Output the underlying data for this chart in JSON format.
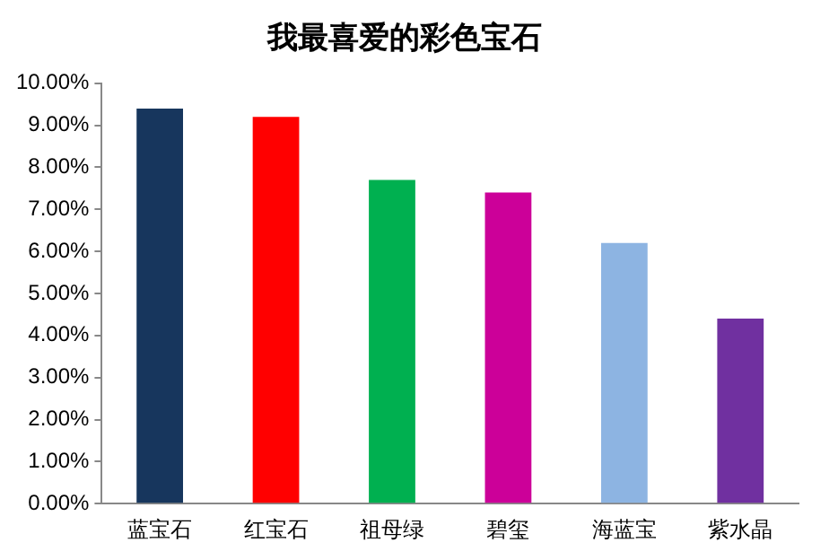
{
  "chart_data": {
    "type": "bar",
    "title": "我最喜爱的彩色宝石",
    "categories": [
      "蓝宝石",
      "红宝石",
      "祖母绿",
      "碧玺",
      "海蓝宝",
      "紫水晶"
    ],
    "values": [
      9.4,
      9.2,
      7.7,
      7.4,
      6.2,
      4.4
    ],
    "colors": [
      "#17365d",
      "#ff0000",
      "#00b050",
      "#cc0099",
      "#8db4e2",
      "#7030a0"
    ],
    "ylim": [
      0,
      10
    ],
    "yticks": [
      {
        "value": 0,
        "label": "0.00%"
      },
      {
        "value": 1,
        "label": "1.00%"
      },
      {
        "value": 2,
        "label": "2.00%"
      },
      {
        "value": 3,
        "label": "3.00%"
      },
      {
        "value": 4,
        "label": "4.00%"
      },
      {
        "value": 5,
        "label": "5.00%"
      },
      {
        "value": 6,
        "label": "6.00%"
      },
      {
        "value": 7,
        "label": "7.00%"
      },
      {
        "value": 8,
        "label": "8.00%"
      },
      {
        "value": 9,
        "label": "9.00%"
      },
      {
        "value": 10,
        "label": "10.00%"
      }
    ],
    "grid": false,
    "legend": false
  }
}
